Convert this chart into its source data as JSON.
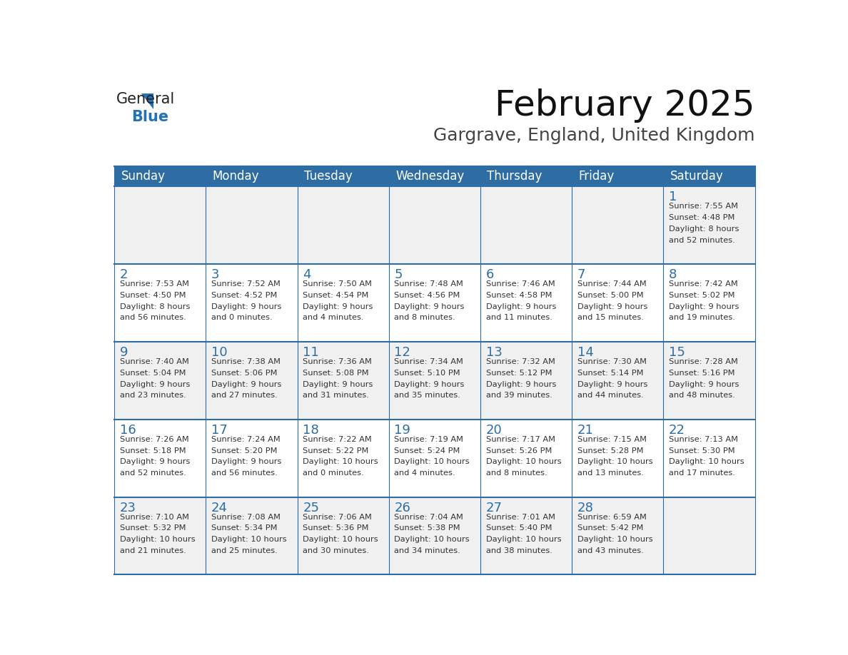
{
  "title": "February 2025",
  "subtitle": "Gargrave, England, United Kingdom",
  "days_of_week": [
    "Sunday",
    "Monday",
    "Tuesday",
    "Wednesday",
    "Thursday",
    "Friday",
    "Saturday"
  ],
  "header_bg": "#2E6DA4",
  "header_text": "#FFFFFF",
  "cell_bg_light": "#F0F0F0",
  "cell_bg_white": "#FFFFFF",
  "text_color": "#333333",
  "day_num_color": "#2E6DA4",
  "logo_general_color": "#222222",
  "logo_blue_color": "#2272B5",
  "calendar_data": [
    [
      {
        "day": null,
        "info": ""
      },
      {
        "day": null,
        "info": ""
      },
      {
        "day": null,
        "info": ""
      },
      {
        "day": null,
        "info": ""
      },
      {
        "day": null,
        "info": ""
      },
      {
        "day": null,
        "info": ""
      },
      {
        "day": 1,
        "info": "Sunrise: 7:55 AM\nSunset: 4:48 PM\nDaylight: 8 hours\nand 52 minutes."
      }
    ],
    [
      {
        "day": 2,
        "info": "Sunrise: 7:53 AM\nSunset: 4:50 PM\nDaylight: 8 hours\nand 56 minutes."
      },
      {
        "day": 3,
        "info": "Sunrise: 7:52 AM\nSunset: 4:52 PM\nDaylight: 9 hours\nand 0 minutes."
      },
      {
        "day": 4,
        "info": "Sunrise: 7:50 AM\nSunset: 4:54 PM\nDaylight: 9 hours\nand 4 minutes."
      },
      {
        "day": 5,
        "info": "Sunrise: 7:48 AM\nSunset: 4:56 PM\nDaylight: 9 hours\nand 8 minutes."
      },
      {
        "day": 6,
        "info": "Sunrise: 7:46 AM\nSunset: 4:58 PM\nDaylight: 9 hours\nand 11 minutes."
      },
      {
        "day": 7,
        "info": "Sunrise: 7:44 AM\nSunset: 5:00 PM\nDaylight: 9 hours\nand 15 minutes."
      },
      {
        "day": 8,
        "info": "Sunrise: 7:42 AM\nSunset: 5:02 PM\nDaylight: 9 hours\nand 19 minutes."
      }
    ],
    [
      {
        "day": 9,
        "info": "Sunrise: 7:40 AM\nSunset: 5:04 PM\nDaylight: 9 hours\nand 23 minutes."
      },
      {
        "day": 10,
        "info": "Sunrise: 7:38 AM\nSunset: 5:06 PM\nDaylight: 9 hours\nand 27 minutes."
      },
      {
        "day": 11,
        "info": "Sunrise: 7:36 AM\nSunset: 5:08 PM\nDaylight: 9 hours\nand 31 minutes."
      },
      {
        "day": 12,
        "info": "Sunrise: 7:34 AM\nSunset: 5:10 PM\nDaylight: 9 hours\nand 35 minutes."
      },
      {
        "day": 13,
        "info": "Sunrise: 7:32 AM\nSunset: 5:12 PM\nDaylight: 9 hours\nand 39 minutes."
      },
      {
        "day": 14,
        "info": "Sunrise: 7:30 AM\nSunset: 5:14 PM\nDaylight: 9 hours\nand 44 minutes."
      },
      {
        "day": 15,
        "info": "Sunrise: 7:28 AM\nSunset: 5:16 PM\nDaylight: 9 hours\nand 48 minutes."
      }
    ],
    [
      {
        "day": 16,
        "info": "Sunrise: 7:26 AM\nSunset: 5:18 PM\nDaylight: 9 hours\nand 52 minutes."
      },
      {
        "day": 17,
        "info": "Sunrise: 7:24 AM\nSunset: 5:20 PM\nDaylight: 9 hours\nand 56 minutes."
      },
      {
        "day": 18,
        "info": "Sunrise: 7:22 AM\nSunset: 5:22 PM\nDaylight: 10 hours\nand 0 minutes."
      },
      {
        "day": 19,
        "info": "Sunrise: 7:19 AM\nSunset: 5:24 PM\nDaylight: 10 hours\nand 4 minutes."
      },
      {
        "day": 20,
        "info": "Sunrise: 7:17 AM\nSunset: 5:26 PM\nDaylight: 10 hours\nand 8 minutes."
      },
      {
        "day": 21,
        "info": "Sunrise: 7:15 AM\nSunset: 5:28 PM\nDaylight: 10 hours\nand 13 minutes."
      },
      {
        "day": 22,
        "info": "Sunrise: 7:13 AM\nSunset: 5:30 PM\nDaylight: 10 hours\nand 17 minutes."
      }
    ],
    [
      {
        "day": 23,
        "info": "Sunrise: 7:10 AM\nSunset: 5:32 PM\nDaylight: 10 hours\nand 21 minutes."
      },
      {
        "day": 24,
        "info": "Sunrise: 7:08 AM\nSunset: 5:34 PM\nDaylight: 10 hours\nand 25 minutes."
      },
      {
        "day": 25,
        "info": "Sunrise: 7:06 AM\nSunset: 5:36 PM\nDaylight: 10 hours\nand 30 minutes."
      },
      {
        "day": 26,
        "info": "Sunrise: 7:04 AM\nSunset: 5:38 PM\nDaylight: 10 hours\nand 34 minutes."
      },
      {
        "day": 27,
        "info": "Sunrise: 7:01 AM\nSunset: 5:40 PM\nDaylight: 10 hours\nand 38 minutes."
      },
      {
        "day": 28,
        "info": "Sunrise: 6:59 AM\nSunset: 5:42 PM\nDaylight: 10 hours\nand 43 minutes."
      },
      {
        "day": null,
        "info": ""
      }
    ]
  ]
}
